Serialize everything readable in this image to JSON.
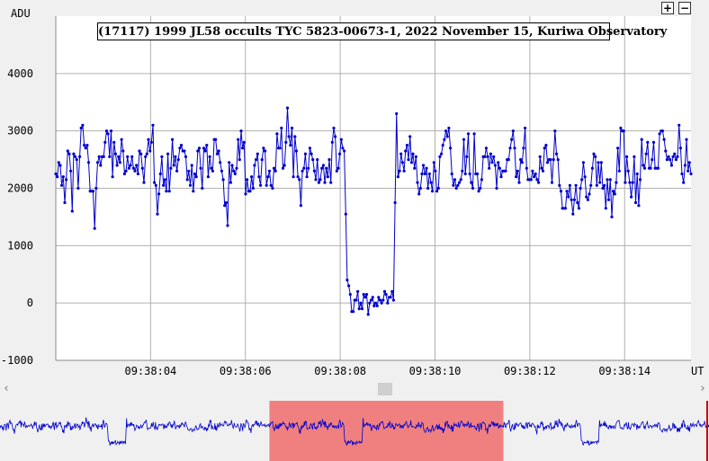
{
  "toolbar": {
    "zoom_in_label": "+",
    "zoom_out_label": "−"
  },
  "chart_data": {
    "type": "line",
    "title": "(17117) 1999 JL58 occults TYC 5823-00673-1, 2022 November 15, Kuriwa Observatory",
    "ylabel": "ADU",
    "xlabel": "UT",
    "ylim": [
      -1000,
      5000
    ],
    "yticks": [
      -1000,
      0,
      1000,
      2000,
      3000,
      4000
    ],
    "xlim": [
      0,
      6.7
    ],
    "xticks": [
      {
        "t": 1.0,
        "label": "09:38:04"
      },
      {
        "t": 2.0,
        "label": "09:38:06"
      },
      {
        "t": 3.0,
        "label": "09:38:08"
      },
      {
        "t": 4.0,
        "label": "09:38:10"
      },
      {
        "t": 5.0,
        "label": "09:38:12"
      },
      {
        "t": 6.0,
        "label": "09:38:14"
      }
    ],
    "x_time_unit_seconds": 2,
    "x_origin_time": "09:38:02",
    "grid": true,
    "series_color": "#0000cc",
    "overview_highlight": "#f08080",
    "overview_range": [
      0.38,
      0.71
    ],
    "series": [
      {
        "values": [
          2250,
          2200,
          2450,
          2400,
          2050,
          2200,
          1750,
          2150,
          2650,
          2600,
          2300,
          1600,
          2600,
          2550,
          2500,
          2000,
          2550,
          3050,
          3100,
          2750,
          2700,
          2750,
          2450,
          1950,
          1950,
          1950,
          1300,
          2000,
          2450,
          2550,
          2400,
          2550,
          2550,
          2800,
          3000,
          2950,
          2550,
          3000,
          2200,
          2800,
          2600,
          2400,
          2550,
          2450,
          2850,
          2650,
          2250,
          2300,
          2550,
          2350,
          2400,
          2550,
          2350,
          2300,
          2400,
          2250,
          2650,
          2600,
          2350,
          2100,
          2550,
          2600,
          2850,
          2650,
          2800,
          3100,
          2100,
          2050,
          1550,
          1900,
          2250,
          2550,
          2050,
          2150,
          1950,
          2600,
          1950,
          2350,
          2850,
          2400,
          2550,
          2300,
          2500,
          2700,
          2750,
          2650,
          2650,
          2550,
          2150,
          2300,
          2050,
          2400,
          1950,
          2250,
          2200,
          2650,
          2700,
          2350,
          2000,
          2700,
          2650,
          2750,
          2200,
          2550,
          2350,
          2300,
          2850,
          2850,
          2600,
          2650,
          2450,
          2300,
          2150,
          1700,
          1750,
          1350,
          2450,
          2100,
          2400,
          2300,
          2250,
          2350,
          2850,
          2500,
          3000,
          2700,
          2800,
          1900,
          2150,
          1950,
          1950,
          2200,
          2000,
          2400,
          2500,
          2600,
          2200,
          2050,
          2500,
          2700,
          2650,
          2050,
          2200,
          2300,
          2050,
          2000,
          2350,
          2300,
          2950,
          2700,
          2700,
          3050,
          2350,
          2400,
          2800,
          3400,
          2900,
          2750,
          3050,
          2200,
          2900,
          2650,
          2200,
          2150,
          1700,
          2300,
          2350,
          2600,
          2200,
          2350,
          2700,
          2600,
          2500,
          2300,
          2150,
          2500,
          2100,
          2150,
          2350,
          2400,
          2100,
          2350,
          2200,
          2500,
          2100,
          2800,
          3050,
          2900,
          2300,
          2350,
          2600,
          2850,
          2700,
          2650,
          1550,
          400,
          300,
          150,
          -150,
          -150,
          50,
          50,
          200,
          -100,
          0,
          -100,
          150,
          100,
          150,
          -200,
          0,
          50,
          100,
          -50,
          0,
          -50,
          100,
          50,
          0,
          50,
          200,
          150,
          0,
          100,
          100,
          200,
          50,
          1750,
          3300,
          2200,
          2300,
          2600,
          2450,
          2300,
          2650,
          2750,
          2500,
          2900,
          2450,
          2600,
          2350,
          2550,
          2100,
          1900,
          2000,
          2250,
          2400,
          2250,
          2350,
          2000,
          2250,
          2100,
          1950,
          2450,
          2300,
          1950,
          2000,
          2550,
          2600,
          2750,
          2850,
          3000,
          2900,
          3050,
          2700,
          2250,
          2050,
          2150,
          2000,
          2050,
          2100,
          2150,
          2300,
          2850,
          2250,
          2550,
          2950,
          2250,
          2100,
          2000,
          2950,
          2250,
          2250,
          1950,
          2000,
          2150,
          2550,
          2550,
          2700,
          2550,
          2350,
          2600,
          2450,
          2550,
          2400,
          2000,
          2450,
          2350,
          2200,
          2300,
          2300,
          2300,
          2500,
          2500,
          2700,
          2850,
          3000,
          2700,
          2200,
          2300,
          2100,
          2500,
          2450,
          2700,
          3050,
          2350,
          2150,
          2150,
          2150,
          2300,
          2200,
          2250,
          2150,
          2100,
          2550,
          2350,
          2300,
          2700,
          2750,
          2450,
          2500,
          2500,
          2100,
          2500,
          3000,
          2600,
          2500,
          2050,
          1950,
          1650,
          1650,
          1650,
          1950,
          1850,
          2050,
          1800,
          1550,
          1800,
          2050,
          1750,
          1650,
          2000,
          2150,
          2450,
          2200,
          1850,
          1800,
          1900,
          2050,
          2350,
          2600,
          2550,
          2050,
          2450,
          2100,
          2450,
          2000,
          2050,
          1650,
          2150,
          1800,
          2150,
          1500,
          1950,
          1900,
          2100,
          2700,
          2300,
          3050,
          3000,
          3000,
          2100,
          2550,
          2300,
          2100,
          1850,
          2100,
          2550,
          1750,
          2250,
          1700,
          2150,
          2850,
          2400,
          2350,
          2600,
          2800,
          2350,
          2350,
          2500,
          2800,
          2350,
          2350,
          2350,
          2950,
          3000,
          3000,
          2850,
          2650,
          2500,
          2550,
          2500,
          2400,
          2550,
          2600,
          2500,
          2550,
          3100,
          2700,
          2250,
          2100,
          2400,
          2850,
          2300,
          2450,
          2250
        ]
      }
    ]
  }
}
